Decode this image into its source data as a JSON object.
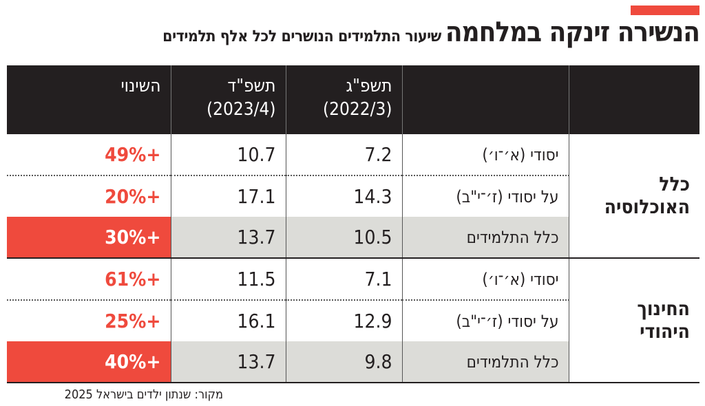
{
  "title": "הנשירה זינקה במלחמה",
  "subtitle": "שיעור התלמידים הנושרים לכל אלף תלמידים",
  "columns": {
    "y1": "תשפ\"ג",
    "y1_sub": "(2022/3)",
    "y2": "תשפ\"ד",
    "y2_sub": "(2023/4)",
    "change": "השינוי"
  },
  "groups": [
    {
      "name_line1": "כלל",
      "name_line2": "האוכלוסיה",
      "rows": [
        {
          "label": "יסודי (א׳־ו׳)",
          "y1": "7.2",
          "y2": "10.7",
          "change": "+49%"
        },
        {
          "label": "על יסודי (ז׳־י\"ב)",
          "y1": "14.3",
          "y2": "17.1",
          "change": "+20%"
        },
        {
          "label": "כלל התלמידים",
          "y1": "10.5",
          "y2": "13.7",
          "change": "+30%"
        }
      ]
    },
    {
      "name_line1": "החינוך",
      "name_line2": "היהודי",
      "rows": [
        {
          "label": "יסודי (א׳־ו׳)",
          "y1": "7.1",
          "y2": "11.5",
          "change": "+61%"
        },
        {
          "label": "על יסודי (ז׳־י\"ב)",
          "y1": "12.9",
          "y2": "16.1",
          "change": "+25%"
        },
        {
          "label": "כלל התלמידים",
          "y1": "9.8",
          "y2": "13.7",
          "change": "+40%"
        }
      ]
    }
  ],
  "source": "מקור: שנתון ילדים בישראל 2025",
  "colors": {
    "accent": "#ef4a3d",
    "header": "#231f20",
    "total_row": "#dcdcd8"
  }
}
